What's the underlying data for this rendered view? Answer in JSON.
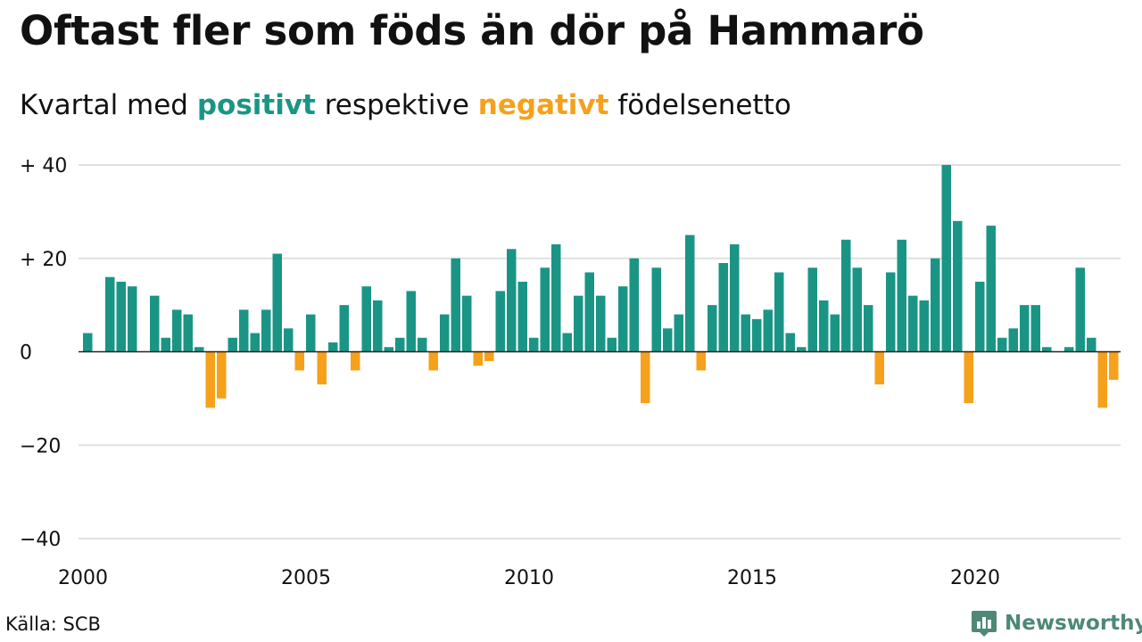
{
  "header": {
    "title": "Oftast fler som föds än dör på Hammarö",
    "subtitle_prefix": "Kvartal med ",
    "subtitle_positive": "positivt",
    "subtitle_middle": " respektive ",
    "subtitle_negative": "negativt",
    "subtitle_suffix": " födelsenetto"
  },
  "footer": {
    "source": "Källa: SCB",
    "brand": "Newsworthy",
    "brand_icon": "bar-chart-logo-icon"
  },
  "colors": {
    "positive": "#1a9585",
    "negative": "#f5a11b",
    "grid": "#e0e0e0",
    "baseline": "#222222",
    "text": "#111111",
    "brand": "#4d8878"
  },
  "chart_data": {
    "type": "bar",
    "ylim": [
      -40,
      40
    ],
    "yticks": [
      40,
      20,
      0,
      -20,
      -40
    ],
    "ytick_labels": [
      "+ 40",
      "+ 20",
      "0",
      "−20",
      "−40"
    ],
    "xticks": [
      2000,
      2005,
      2010,
      2015,
      2020
    ],
    "xtick_labels": [
      "2000",
      "2005",
      "2010",
      "2015",
      "2020"
    ],
    "x_start": 2000,
    "periods_per_year": 4,
    "grid": true,
    "values": [
      4,
      0,
      16,
      15,
      14,
      0,
      12,
      3,
      9,
      8,
      1,
      -12,
      -10,
      3,
      9,
      4,
      9,
      21,
      5,
      -4,
      8,
      -7,
      2,
      10,
      -4,
      14,
      11,
      1,
      3,
      13,
      3,
      -4,
      8,
      20,
      12,
      -3,
      -2,
      13,
      22,
      15,
      3,
      18,
      23,
      4,
      12,
      17,
      12,
      3,
      14,
      20,
      -11,
      18,
      5,
      8,
      25,
      -4,
      10,
      19,
      23,
      8,
      7,
      9,
      17,
      4,
      1,
      18,
      11,
      8,
      24,
      18,
      10,
      -7,
      17,
      24,
      12,
      11,
      20,
      40,
      28,
      -11,
      15,
      27,
      3,
      5,
      10,
      10,
      1,
      0,
      1,
      18,
      3,
      -12,
      -6
    ]
  }
}
